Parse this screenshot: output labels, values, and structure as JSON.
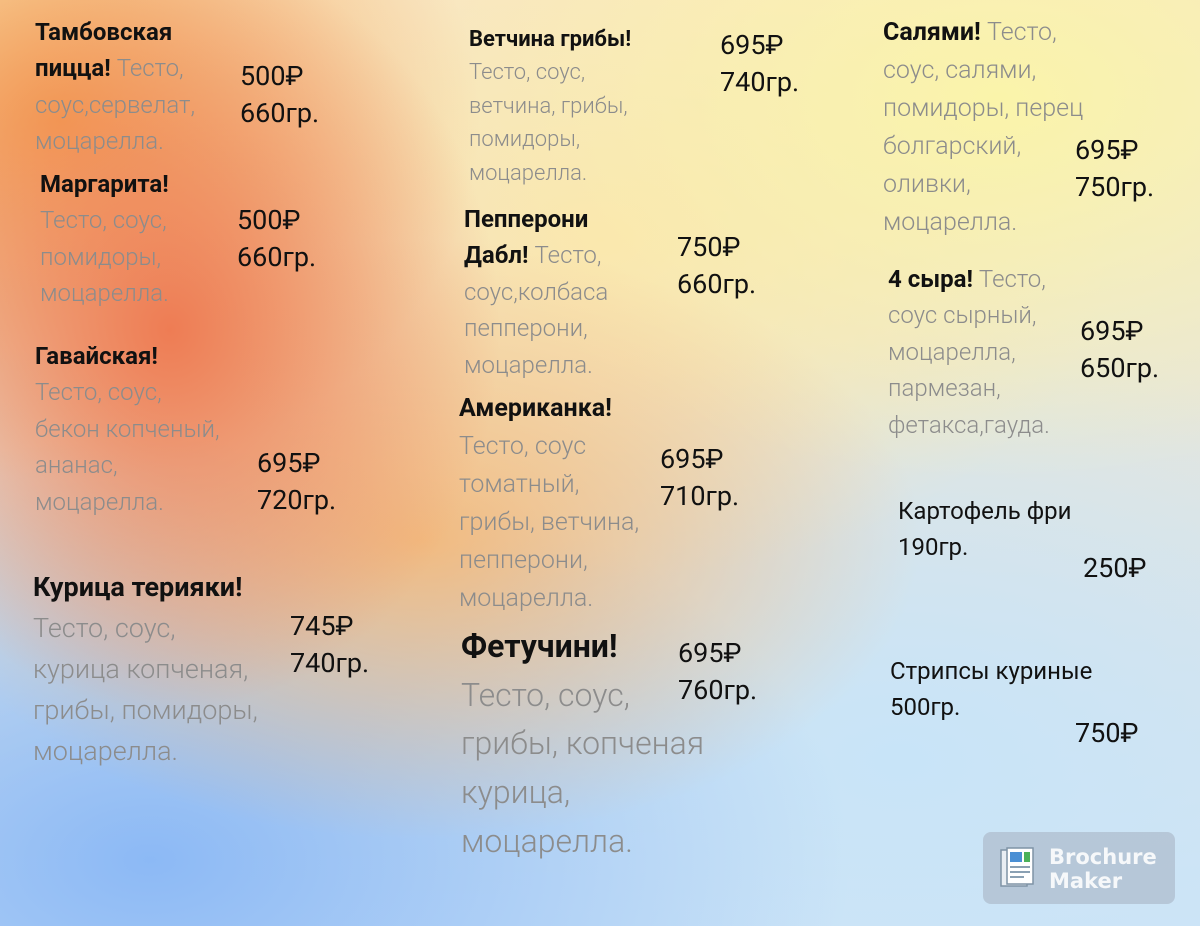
{
  "menu": {
    "items": [
      {
        "name": [
          "Тамбовская",
          "пицца!"
        ],
        "description": [
          "Тесто,",
          "соус,сервелат,",
          "моцарелла."
        ],
        "price": "500₽",
        "weight": "660гр."
      },
      {
        "name": [
          "Маргарита!"
        ],
        "description": [
          "Тесто, соус,",
          "помидоры,",
          "моцарелла."
        ],
        "price": "500₽",
        "weight": "660гр."
      },
      {
        "name": [
          "Гавайская!"
        ],
        "description": [
          "Тесто, соус,",
          "бекон копченый,",
          "ананас,",
          "моцарелла."
        ],
        "price": "695₽",
        "weight": "720гр."
      },
      {
        "name": [
          "Курица терияки!"
        ],
        "description": [
          "Тесто, соус,",
          "курица копченая,",
          "грибы, помидоры,",
          "моцарелла."
        ],
        "price": "745₽",
        "weight": "740гр."
      },
      {
        "name": [
          "Ветчина грибы!"
        ],
        "description": [
          "Тесто, соус,",
          "ветчина, грибы,",
          "помидоры,",
          "моцарелла."
        ],
        "price": "695₽",
        "weight": "740гр."
      },
      {
        "name": [
          "Пепперони",
          "Дабл!"
        ],
        "description": [
          "Тесто,",
          "соус,колбаса",
          "пепперони,",
          "моцарелла."
        ],
        "price": "750₽",
        "weight": "660гр."
      },
      {
        "name": [
          "Американка!"
        ],
        "description": [
          "Тесто, соус",
          "томатный,",
          "грибы, ветчина,",
          "пепперони,",
          "моцарелла."
        ],
        "price": "695₽",
        "weight": "710гр."
      },
      {
        "name": [
          "Фетучини!"
        ],
        "description": [
          "Тесто, соус,",
          "грибы, копченая",
          "курица,",
          "моцарелла."
        ],
        "price": "695₽",
        "weight": "760гр."
      },
      {
        "name": [
          "Салями!"
        ],
        "description": [
          "Тесто,",
          "соус, салями,",
          "помидоры, перец",
          "болгарский,",
          "оливки,",
          "моцарелла."
        ],
        "price": "695₽",
        "weight": "750гр."
      },
      {
        "name": [
          "4 сыра!"
        ],
        "description": [
          "Тесто,",
          "соус сырный,",
          "моцарелла,",
          "пармезан,",
          "фетакса,гауда."
        ],
        "price": "695₽",
        "weight": "650гр."
      },
      {
        "name": [
          "Картофель фри"
        ],
        "weight": "190гр.",
        "price": "250₽"
      },
      {
        "name": [
          "Стрипсы куриные"
        ],
        "weight": "500гр.",
        "price": "750₽"
      }
    ]
  },
  "badge": {
    "line1": "Brochure",
    "line2": "Maker"
  }
}
